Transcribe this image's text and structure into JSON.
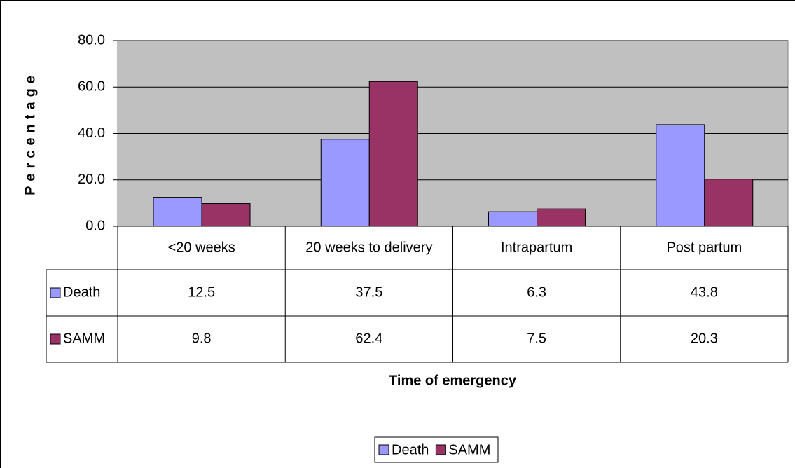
{
  "chart_data": {
    "type": "bar",
    "y_label": "Percentage",
    "x_label": "Time of emergency",
    "categories": [
      "<20 weeks",
      "20 weeks to delivery",
      "Intrapartum",
      "Post partum"
    ],
    "series": [
      {
        "name": "Death",
        "color": "#9999ff",
        "values": [
          12.5,
          37.5,
          6.3,
          43.8
        ]
      },
      {
        "name": "SAMM",
        "color": "#993366",
        "values": [
          9.8,
          62.4,
          7.5,
          20.3
        ]
      }
    ],
    "ylim": [
      0,
      80
    ],
    "yticks": [
      {
        "value": 0,
        "label": "0.0"
      },
      {
        "value": 20,
        "label": "20.0"
      },
      {
        "value": 40,
        "label": "40.0"
      },
      {
        "value": 60,
        "label": "60.0"
      },
      {
        "value": 80,
        "label": "80.0"
      }
    ],
    "grid": true,
    "legend": "bottom"
  }
}
